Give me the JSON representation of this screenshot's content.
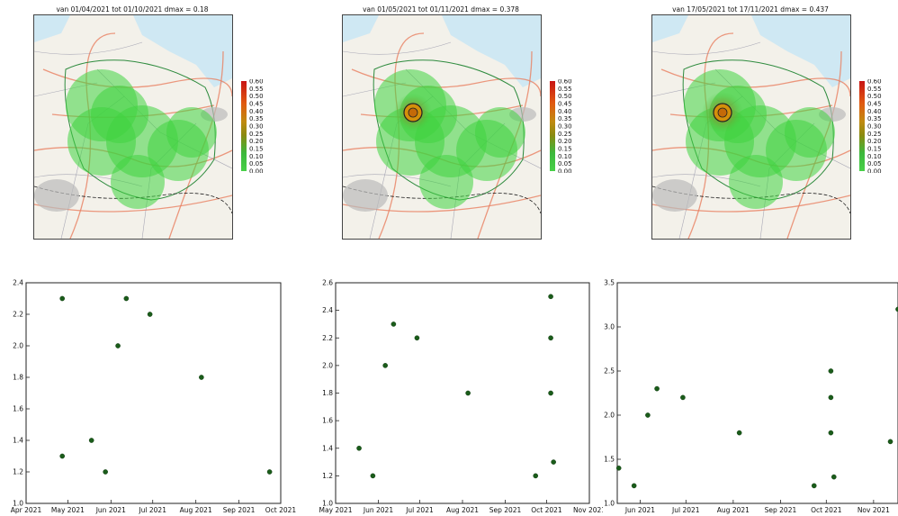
{
  "maps": [
    {
      "title": "van 01/04/2021 tot 01/10/2021 dmax = 0.18",
      "colorbar_ticks": [
        "0.60",
        "0.55",
        "0.50",
        "0.45",
        "0.40",
        "0.35",
        "0.30",
        "0.25",
        "0.20",
        "0.15",
        "0.10",
        "0.05",
        "0.00"
      ],
      "hotspot_intensity": 0.18
    },
    {
      "title": "van 01/05/2021 tot 01/11/2021 dmax = 0.378",
      "colorbar_ticks": [
        "0.60",
        "0.55",
        "0.50",
        "0.45",
        "0.40",
        "0.35",
        "0.30",
        "0.25",
        "0.20",
        "0.15",
        "0.10",
        "0.05",
        "0.00"
      ],
      "hotspot_intensity": 0.378
    },
    {
      "title": "van 17/05/2021 tot 17/11/2021 dmax = 0.437",
      "colorbar_ticks": [
        "0.60",
        "0.55",
        "0.50",
        "0.45",
        "0.40",
        "0.35",
        "0.30",
        "0.25",
        "0.20",
        "0.15",
        "0.10",
        "0.05",
        "0.00"
      ],
      "hotspot_intensity": 0.437
    }
  ],
  "chart_data": [
    {
      "type": "scatter",
      "title": "",
      "xlabel": "",
      "ylabel": "",
      "x_ticks": [
        "Apr 2021",
        "May 2021",
        "Jun 2021",
        "Jul 2021",
        "Aug 2021",
        "Sep 2021",
        "Oct 2021"
      ],
      "xlim": [
        "2021-04-01",
        "2021-10-01"
      ],
      "ylim": [
        1.0,
        2.4
      ],
      "y_ticks": [
        "1.0",
        "1.2",
        "1.4",
        "1.6",
        "1.8",
        "2.0",
        "2.2",
        "2.4"
      ],
      "point_color": "#1a5c1a",
      "points": [
        {
          "x": "2021-04-27",
          "y": 2.3
        },
        {
          "x": "2021-04-27",
          "y": 1.3
        },
        {
          "x": "2021-05-18",
          "y": 1.4
        },
        {
          "x": "2021-05-28",
          "y": 1.2
        },
        {
          "x": "2021-06-06",
          "y": 2.0
        },
        {
          "x": "2021-06-12",
          "y": 2.3
        },
        {
          "x": "2021-06-29",
          "y": 2.2
        },
        {
          "x": "2021-08-05",
          "y": 1.8
        },
        {
          "x": "2021-09-23",
          "y": 1.2
        }
      ]
    },
    {
      "type": "scatter",
      "title": "",
      "xlabel": "",
      "ylabel": "",
      "x_ticks": [
        "May 2021",
        "Jun 2021",
        "Jul 2021",
        "Aug 2021",
        "Sep 2021",
        "Oct 2021",
        "Nov 2021"
      ],
      "xlim": [
        "2021-05-01",
        "2021-11-01"
      ],
      "ylim": [
        1.0,
        2.6
      ],
      "y_ticks": [
        "1.0",
        "1.2",
        "1.4",
        "1.6",
        "1.8",
        "2.0",
        "2.2",
        "2.4",
        "2.6"
      ],
      "point_color": "#1a5c1a",
      "points": [
        {
          "x": "2021-05-18",
          "y": 1.4
        },
        {
          "x": "2021-05-28",
          "y": 1.2
        },
        {
          "x": "2021-06-06",
          "y": 2.0
        },
        {
          "x": "2021-06-12",
          "y": 2.3
        },
        {
          "x": "2021-06-29",
          "y": 2.2
        },
        {
          "x": "2021-08-05",
          "y": 1.8
        },
        {
          "x": "2021-09-23",
          "y": 1.2
        },
        {
          "x": "2021-10-04",
          "y": 2.5
        },
        {
          "x": "2021-10-04",
          "y": 2.2
        },
        {
          "x": "2021-10-04",
          "y": 1.8
        },
        {
          "x": "2021-10-06",
          "y": 1.3
        }
      ]
    },
    {
      "type": "scatter",
      "title": "",
      "xlabel": "",
      "ylabel": "",
      "x_ticks": [
        "Jun 2021",
        "Jul 2021",
        "Aug 2021",
        "Sep 2021",
        "Oct 2021",
        "Nov 2021"
      ],
      "xlim": [
        "2021-05-17",
        "2021-11-17"
      ],
      "ylim": [
        1.0,
        3.5
      ],
      "y_ticks": [
        "1.0",
        "1.5",
        "2.0",
        "2.5",
        "3.0",
        "3.5"
      ],
      "point_color": "#1a5c1a",
      "points": [
        {
          "x": "2021-05-18",
          "y": 1.4
        },
        {
          "x": "2021-05-28",
          "y": 1.2
        },
        {
          "x": "2021-06-06",
          "y": 2.0
        },
        {
          "x": "2021-06-12",
          "y": 2.3
        },
        {
          "x": "2021-06-29",
          "y": 2.2
        },
        {
          "x": "2021-08-05",
          "y": 1.8
        },
        {
          "x": "2021-09-23",
          "y": 1.2
        },
        {
          "x": "2021-10-04",
          "y": 2.5
        },
        {
          "x": "2021-10-04",
          "y": 2.2
        },
        {
          "x": "2021-10-04",
          "y": 1.8
        },
        {
          "x": "2021-10-06",
          "y": 1.3
        },
        {
          "x": "2021-11-12",
          "y": 1.7
        },
        {
          "x": "2021-11-17",
          "y": 3.2
        }
      ]
    }
  ]
}
